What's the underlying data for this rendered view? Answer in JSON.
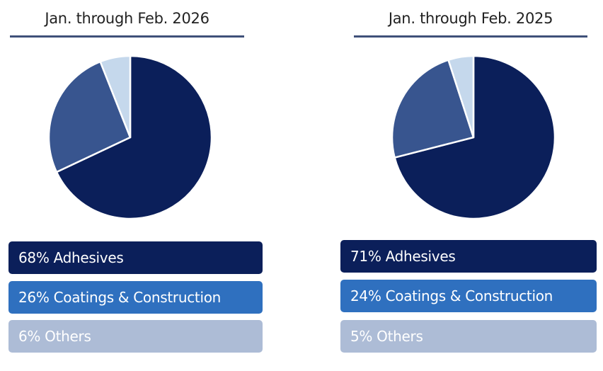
{
  "chart_data": [
    {
      "type": "pie",
      "title": "Jan. through Feb. 2026",
      "slices": [
        {
          "label": "Adhesives",
          "value": 68,
          "legend": "68% Adhesives",
          "color": "#0b1f5a",
          "legend_color": "#0b1f5a"
        },
        {
          "label": "Coatings & Construction",
          "value": 26,
          "legend": "26% Coatings & Construction",
          "color": "#38558f",
          "legend_color": "#2f70bf"
        },
        {
          "label": "Others",
          "value": 6,
          "legend": "6% Others",
          "color": "#c5d8ec",
          "legend_color": "#adbcd6"
        }
      ]
    },
    {
      "type": "pie",
      "title": "Jan. through Feb. 2025",
      "slices": [
        {
          "label": "Adhesives",
          "value": 71,
          "legend": "71% Adhesives",
          "color": "#0b1f5a",
          "legend_color": "#0b1f5a"
        },
        {
          "label": "Coatings & Construction",
          "value": 24,
          "legend": "24% Coatings & Construction",
          "color": "#38558f",
          "legend_color": "#2f70bf"
        },
        {
          "label": "Others",
          "value": 5,
          "legend": "5% Others",
          "color": "#c5d8ec",
          "legend_color": "#adbcd6"
        }
      ]
    }
  ]
}
